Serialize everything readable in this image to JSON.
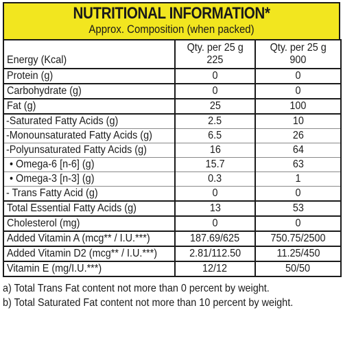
{
  "header": {
    "title": "NUTRITIONAL INFORMATION*",
    "subtitle": "Approx. Composition (when packed)"
  },
  "table": {
    "col1_header": "Qty. per 25 g",
    "col2_header": "Qty. per 25 g",
    "rows": [
      {
        "label": "Energy (Kcal)",
        "v1": "225",
        "v2": "900"
      },
      {
        "label": "Protein (g)",
        "v1": "0",
        "v2": "0"
      },
      {
        "label": "Carbohydrate (g)",
        "v1": "0",
        "v2": "0"
      },
      {
        "label": "Fat (g)",
        "v1": "25",
        "v2": "100"
      },
      {
        "label": "-Saturated Fatty Acids (g)",
        "v1": "2.5",
        "v2": "10"
      },
      {
        "label": "-Monounsaturated Fatty Acids (g)",
        "v1": "6.5",
        "v2": "26"
      },
      {
        "label": "-Polyunsaturated Fatty Acids (g)",
        "v1": "16",
        "v2": "64"
      },
      {
        "label": "• Omega-6 [n-6] (g)",
        "v1": "15.7",
        "v2": "63"
      },
      {
        "label": "• Omega-3 [n-3] (g)",
        "v1": "0.3",
        "v2": "1"
      },
      {
        "label": "- Trans Fatty Acid (g)",
        "v1": "0",
        "v2": "0"
      },
      {
        "label": "Total Essential Fatty Acids (g)",
        "v1": "13",
        "v2": "53"
      },
      {
        "label": "Cholesterol (mg)",
        "v1": "0",
        "v2": "0"
      },
      {
        "label": "Added Vitamin A (mcg** / I.U.***)",
        "v1": "187.69/625",
        "v2": "750.75/2500"
      },
      {
        "label": "Added Vitamin D2 (mcg** / I.U.***)",
        "v1": "2.81/112.50",
        "v2": "11.25/450"
      },
      {
        "label": "Vitamin E (mg/I.U.***)",
        "v1": "12/12",
        "v2": "50/50"
      }
    ]
  },
  "notes": [
    "a) Total Trans Fat content not more than 0 percent by weight.",
    "b) Total Saturated Fat content not more than 10 percent by weight."
  ]
}
